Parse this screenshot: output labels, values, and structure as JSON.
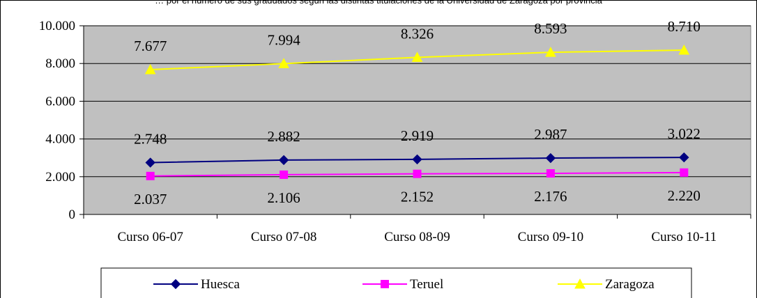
{
  "chart_data": {
    "type": "line",
    "title": "… por el número de sus graduados según las distintas titulaciones de la Universidad de Zaragoza por provincia",
    "categories": [
      "Curso 06-07",
      "Curso 07-08",
      "Curso 08-09",
      "Curso 09-10",
      "Curso 10-11"
    ],
    "ylim": [
      0,
      10000
    ],
    "yticks": [
      0,
      2000,
      4000,
      6000,
      8000,
      10000
    ],
    "ytick_labels": [
      "0",
      "2.000",
      "4.000",
      "6.000",
      "8.000",
      "10.000"
    ],
    "grid": true,
    "plot_background": "#c0c0c0",
    "legend_position": "bottom",
    "series": [
      {
        "name": "Huesca",
        "values": [
          2748,
          2882,
          2919,
          2987,
          3022
        ],
        "labels": [
          "2.748",
          "2.882",
          "2.919",
          "2.987",
          "3.022"
        ],
        "color": "#000080",
        "marker": "diamond",
        "label_position": "above"
      },
      {
        "name": "Teruel",
        "values": [
          2037,
          2106,
          2152,
          2176,
          2220
        ],
        "labels": [
          "2.037",
          "2.106",
          "2.152",
          "2.176",
          "2.220"
        ],
        "color": "#ff00ff",
        "marker": "square",
        "label_position": "below"
      },
      {
        "name": "Zaragoza",
        "values": [
          7677,
          7994,
          8326,
          8593,
          8710
        ],
        "labels": [
          "7.677",
          "7.994",
          "8.326",
          "8.593",
          "8.710"
        ],
        "color": "#ffff00",
        "marker": "triangle",
        "label_position": "above"
      }
    ]
  }
}
